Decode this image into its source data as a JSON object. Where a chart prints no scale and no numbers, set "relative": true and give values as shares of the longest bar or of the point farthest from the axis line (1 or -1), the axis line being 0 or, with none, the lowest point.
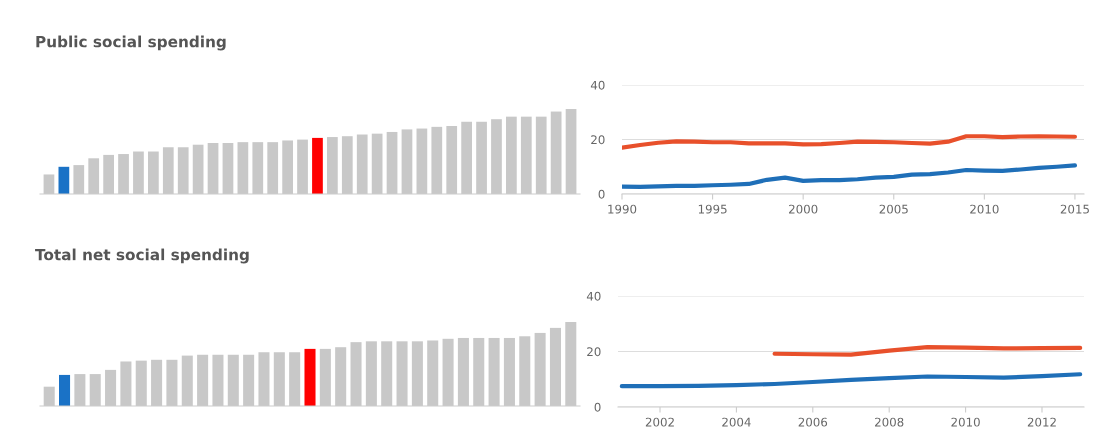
{
  "chart_data": [
    {
      "type": "bar",
      "title": "Public social spending",
      "relative": true,
      "categories": [
        null,
        null,
        null,
        null,
        null,
        null,
        null,
        null,
        null,
        null,
        null,
        null,
        null,
        null,
        null,
        null,
        null,
        null,
        null,
        null,
        null,
        null,
        null,
        null,
        null,
        null,
        null,
        null,
        null,
        null,
        null,
        null,
        null,
        null,
        null,
        null
      ],
      "values": [
        0.23,
        0.32,
        0.34,
        0.42,
        0.46,
        0.47,
        0.5,
        0.5,
        0.55,
        0.55,
        0.58,
        0.6,
        0.6,
        0.61,
        0.61,
        0.61,
        0.63,
        0.64,
        0.66,
        0.67,
        0.68,
        0.7,
        0.71,
        0.73,
        0.76,
        0.77,
        0.79,
        0.8,
        0.85,
        0.85,
        0.88,
        0.91,
        0.91,
        0.91,
        0.97,
        1
      ],
      "colors": [
        "#c8c8c8",
        "#1a72c6",
        "#c8c8c8",
        "#c8c8c8",
        "#c8c8c8",
        "#c8c8c8",
        "#c8c8c8",
        "#c8c8c8",
        "#c8c8c8",
        "#c8c8c8",
        "#c8c8c8",
        "#c8c8c8",
        "#c8c8c8",
        "#c8c8c8",
        "#c8c8c8",
        "#c8c8c8",
        "#c8c8c8",
        "#c8c8c8",
        "#ff0000",
        "#c8c8c8",
        "#c8c8c8",
        "#c8c8c8",
        "#c8c8c8",
        "#c8c8c8",
        "#c8c8c8",
        "#c8c8c8",
        "#c8c8c8",
        "#c8c8c8",
        "#c8c8c8",
        "#c8c8c8",
        "#c8c8c8",
        "#c8c8c8",
        "#c8c8c8",
        "#c8c8c8",
        "#c8c8c8",
        "#c8c8c8"
      ]
    },
    {
      "type": "line",
      "xlim": [
        1990,
        2015.5
      ],
      "xticks": [
        1990,
        1995,
        2000,
        2005,
        2010,
        2015
      ],
      "ylim": [
        0,
        40
      ],
      "yticks": [
        0,
        20,
        40
      ],
      "grid": "y",
      "x": [
        1990,
        1991,
        1992,
        1993,
        1994,
        1995,
        1996,
        1997,
        1998,
        1999,
        2000,
        2001,
        2002,
        2003,
        2004,
        2005,
        2006,
        2007,
        2008,
        2009,
        2010,
        2011,
        2012,
        2013,
        2014,
        2015
      ],
      "series": [
        {
          "color": "#e8502b",
          "values": [
            17,
            18,
            18.8,
            19.3,
            19.2,
            19,
            19,
            18.6,
            18.6,
            18.6,
            18.2,
            18.3,
            18.7,
            19.2,
            19.1,
            19,
            18.7,
            18.5,
            19.2,
            21.2,
            21.2,
            20.9,
            21.1,
            21.2,
            21.1,
            21
          ]
        },
        {
          "color": "#1f6fb8",
          "values": [
            2.7,
            2.6,
            2.8,
            3,
            3,
            3.2,
            3.4,
            3.7,
            5.2,
            6,
            4.8,
            5.1,
            5.1,
            5.4,
            6,
            6.3,
            7.1,
            7.3,
            7.9,
            8.8,
            8.6,
            8.5,
            9,
            9.6,
            10,
            10.5
          ]
        }
      ]
    },
    {
      "type": "bar",
      "title": "Total net social spending",
      "relative": true,
      "categories": [
        null,
        null,
        null,
        null,
        null,
        null,
        null,
        null,
        null,
        null,
        null,
        null,
        null,
        null,
        null,
        null,
        null,
        null,
        null,
        null,
        null,
        null,
        null,
        null,
        null,
        null,
        null,
        null,
        null,
        null,
        null,
        null,
        null,
        null,
        null
      ],
      "values": [
        0.23,
        0.37,
        0.38,
        0.38,
        0.43,
        0.53,
        0.54,
        0.55,
        0.55,
        0.6,
        0.61,
        0.61,
        0.61,
        0.61,
        0.64,
        0.64,
        0.64,
        0.68,
        0.68,
        0.7,
        0.76,
        0.77,
        0.77,
        0.77,
        0.77,
        0.78,
        0.8,
        0.81,
        0.81,
        0.81,
        0.81,
        0.83,
        0.87,
        0.93,
        1
      ],
      "colors": [
        "#c8c8c8",
        "#1a72c6",
        "#c8c8c8",
        "#c8c8c8",
        "#c8c8c8",
        "#c8c8c8",
        "#c8c8c8",
        "#c8c8c8",
        "#c8c8c8",
        "#c8c8c8",
        "#c8c8c8",
        "#c8c8c8",
        "#c8c8c8",
        "#c8c8c8",
        "#c8c8c8",
        "#c8c8c8",
        "#c8c8c8",
        "#ff0000",
        "#c8c8c8",
        "#c8c8c8",
        "#c8c8c8",
        "#c8c8c8",
        "#c8c8c8",
        "#c8c8c8",
        "#c8c8c8",
        "#c8c8c8",
        "#c8c8c8",
        "#c8c8c8",
        "#c8c8c8",
        "#c8c8c8",
        "#c8c8c8",
        "#c8c8c8",
        "#c8c8c8",
        "#c8c8c8",
        "#c8c8c8"
      ]
    },
    {
      "type": "line",
      "xlim": [
        2000.9,
        2013.1
      ],
      "xticks": [
        2002,
        2004,
        2006,
        2008,
        2010,
        2012
      ],
      "ylim": [
        0,
        40
      ],
      "yticks": [
        0,
        20,
        40
      ],
      "grid": "y",
      "series": [
        {
          "color": "#e8502b",
          "x": [
            2005,
            2006,
            2007,
            2008,
            2009,
            2010,
            2011,
            2012,
            2013
          ],
          "values": [
            19.2,
            19,
            18.9,
            20.3,
            21.6,
            21.4,
            21.1,
            21.2,
            21.3
          ]
        },
        {
          "color": "#1f6fb8",
          "x": [
            2001,
            2002,
            2003,
            2004,
            2005,
            2006,
            2007,
            2008,
            2009,
            2010,
            2011,
            2012,
            2013
          ],
          "values": [
            7.5,
            7.5,
            7.6,
            7.9,
            8.3,
            9,
            9.8,
            10.4,
            11,
            10.8,
            10.6,
            11.1,
            11.8
          ]
        }
      ]
    }
  ]
}
